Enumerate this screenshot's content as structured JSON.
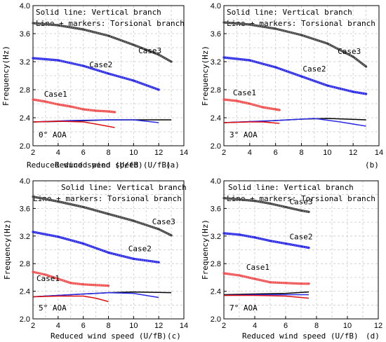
{
  "chart_data": [
    {
      "type": "line",
      "panel_label": "(a)",
      "aoa_label": "0° AOA",
      "xlabel": "Reduced wind speed (U/fB)",
      "ylabel": "Frequency(Hz)",
      "xlim": [
        2,
        14
      ],
      "ylim": [
        2.0,
        4.0
      ],
      "xticks": [
        "2",
        "4",
        "6",
        "8",
        "10",
        "12",
        "14"
      ],
      "yticks": [
        "2.0",
        "2.4",
        "2.8",
        "3.2",
        "3.6",
        "4.0"
      ],
      "legend": [
        "Solid line: Vertical branch",
        "Line + markers: Torsional branch"
      ],
      "grid": true,
      "series": [
        {
          "name": "Case3",
          "color": "#444444",
          "branch": "torsional",
          "points": [
            [
              2,
              3.75
            ],
            [
              4,
              3.72
            ],
            [
              6,
              3.66
            ],
            [
              8,
              3.57
            ],
            [
              10,
              3.44
            ],
            [
              12,
              3.3
            ],
            [
              13,
              3.2
            ]
          ]
        },
        {
          "name": "Case2",
          "color": "#2a2ae8",
          "branch": "torsional",
          "points": [
            [
              2,
              3.25
            ],
            [
              4,
              3.22
            ],
            [
              6,
              3.14
            ],
            [
              8,
              3.03
            ],
            [
              10,
              2.93
            ],
            [
              12,
              2.8
            ]
          ]
        },
        {
          "name": "Case1",
          "color": "#f05050",
          "branch": "torsional",
          "points": [
            [
              2,
              2.66
            ],
            [
              3,
              2.63
            ],
            [
              4,
              2.59
            ],
            [
              5,
              2.56
            ],
            [
              6,
              2.52
            ],
            [
              7,
              2.5
            ],
            [
              8,
              2.49
            ],
            [
              8.5,
              2.48
            ]
          ]
        },
        {
          "name": "",
          "color": "#000000",
          "branch": "vertical",
          "points": [
            [
              2,
              2.34
            ],
            [
              5,
              2.35
            ],
            [
              8,
              2.37
            ],
            [
              10,
              2.37
            ],
            [
              13,
              2.37
            ]
          ]
        },
        {
          "name": "",
          "color": "#2a2ae8",
          "branch": "vertical",
          "points": [
            [
              2,
              2.34
            ],
            [
              5,
              2.36
            ],
            [
              8,
              2.37
            ],
            [
              10,
              2.37
            ],
            [
              12,
              2.33
            ]
          ]
        },
        {
          "name": "",
          "color": "#e01010",
          "branch": "vertical",
          "points": [
            [
              2,
              2.34
            ],
            [
              4,
              2.35
            ],
            [
              6,
              2.34
            ],
            [
              7,
              2.31
            ],
            [
              8.5,
              2.26
            ]
          ]
        }
      ]
    },
    {
      "type": "line",
      "panel_label": "(b)",
      "aoa_label": "3° AOA",
      "xlabel": "Reduced wind speed (U/fB)",
      "ylabel": "Frequency(Hz)",
      "xlim": [
        2,
        14
      ],
      "ylim": [
        2.0,
        4.0
      ],
      "xticks": [
        "2",
        "4",
        "6",
        "8",
        "10",
        "12",
        "14"
      ],
      "yticks": [
        "2.0",
        "2.4",
        "2.8",
        "3.2",
        "3.6",
        "4.0"
      ],
      "legend": [
        "Solid line: Vertical branch",
        "Line + markers: Torsional branch"
      ],
      "grid": true,
      "series": [
        {
          "name": "Case3",
          "color": "#444444",
          "branch": "torsional",
          "points": [
            [
              2,
              3.76
            ],
            [
              4,
              3.73
            ],
            [
              6,
              3.67
            ],
            [
              8,
              3.58
            ],
            [
              10,
              3.46
            ],
            [
              12,
              3.27
            ],
            [
              13,
              3.13
            ]
          ]
        },
        {
          "name": "Case2",
          "color": "#2a2ae8",
          "branch": "torsional",
          "points": [
            [
              2,
              3.26
            ],
            [
              4,
              3.22
            ],
            [
              6,
              3.12
            ],
            [
              8,
              2.99
            ],
            [
              10,
              2.86
            ],
            [
              12,
              2.77
            ],
            [
              13,
              2.74
            ]
          ]
        },
        {
          "name": "Case1",
          "color": "#f05050",
          "branch": "torsional",
          "points": [
            [
              2,
              2.66
            ],
            [
              3,
              2.64
            ],
            [
              4,
              2.6
            ],
            [
              5,
              2.55
            ],
            [
              6,
              2.52
            ],
            [
              6.3,
              2.51
            ]
          ]
        },
        {
          "name": "",
          "color": "#000000",
          "branch": "vertical",
          "points": [
            [
              2,
              2.33
            ],
            [
              5,
              2.35
            ],
            [
              8,
              2.38
            ],
            [
              10,
              2.39
            ],
            [
              13,
              2.37
            ]
          ]
        },
        {
          "name": "",
          "color": "#2a2ae8",
          "branch": "vertical",
          "points": [
            [
              2,
              2.33
            ],
            [
              6,
              2.36
            ],
            [
              9,
              2.39
            ],
            [
              11,
              2.34
            ],
            [
              13,
              2.28
            ]
          ]
        },
        {
          "name": "",
          "color": "#e01010",
          "branch": "vertical",
          "points": [
            [
              2,
              2.33
            ],
            [
              4,
              2.34
            ],
            [
              5,
              2.34
            ],
            [
              6.3,
              2.32
            ]
          ]
        }
      ]
    },
    {
      "type": "line",
      "panel_label": "(c)",
      "aoa_label": "5° AOA",
      "xlabel": "Reduced wind speed (U/fB)",
      "ylabel": "Frequency(Hz)",
      "xlim": [
        2,
        14
      ],
      "ylim": [
        2.0,
        4.0
      ],
      "xticks": [
        "2",
        "4",
        "6",
        "8",
        "10",
        "12",
        "14"
      ],
      "yticks": [
        "2.0",
        "2.4",
        "2.8",
        "3.2",
        "3.6",
        "4.0"
      ],
      "legend": [
        "Solid line: Vertical branch",
        "Line + markers: Torsional branch"
      ],
      "grid": true,
      "series": [
        {
          "name": "Case3",
          "color": "#444444",
          "branch": "torsional",
          "points": [
            [
              2,
              3.77
            ],
            [
              4,
              3.7
            ],
            [
              6,
              3.62
            ],
            [
              8,
              3.52
            ],
            [
              10,
              3.42
            ],
            [
              12,
              3.3
            ],
            [
              13,
              3.21
            ]
          ]
        },
        {
          "name": "Case2",
          "color": "#2a2ae8",
          "branch": "torsional",
          "points": [
            [
              2,
              3.26
            ],
            [
              4,
              3.19
            ],
            [
              6,
              3.09
            ],
            [
              8,
              2.96
            ],
            [
              10,
              2.87
            ],
            [
              12,
              2.82
            ]
          ]
        },
        {
          "name": "Case1",
          "color": "#f05050",
          "branch": "torsional",
          "points": [
            [
              2,
              2.68
            ],
            [
              3,
              2.64
            ],
            [
              4,
              2.58
            ],
            [
              5,
              2.52
            ],
            [
              6,
              2.5
            ],
            [
              8,
              2.48
            ]
          ]
        },
        {
          "name": "",
          "color": "#000000",
          "branch": "vertical",
          "points": [
            [
              2,
              2.32
            ],
            [
              5,
              2.35
            ],
            [
              8,
              2.38
            ],
            [
              10,
              2.39
            ],
            [
              13,
              2.38
            ]
          ]
        },
        {
          "name": "",
          "color": "#2a2ae8",
          "branch": "vertical",
          "points": [
            [
              2,
              2.32
            ],
            [
              5,
              2.35
            ],
            [
              8,
              2.38
            ],
            [
              10,
              2.37
            ],
            [
              12,
              2.31
            ]
          ]
        },
        {
          "name": "",
          "color": "#e01010",
          "branch": "vertical",
          "points": [
            [
              2,
              2.32
            ],
            [
              4,
              2.33
            ],
            [
              6,
              2.33
            ],
            [
              7,
              2.3
            ],
            [
              8,
              2.25
            ]
          ]
        }
      ]
    },
    {
      "type": "line",
      "panel_label": "(d)",
      "aoa_label": "7° AOA",
      "xlabel": "Reduced wind speed (U/fB)",
      "ylabel": "Frequency(Hz)",
      "xlim": [
        2,
        12
      ],
      "ylim": [
        2.0,
        4.0
      ],
      "xticks": [
        "2",
        "4",
        "6",
        "8",
        "10",
        "12"
      ],
      "yticks": [
        "2.0",
        "2.4",
        "2.8",
        "3.2",
        "3.6",
        "4.0"
      ],
      "legend": [
        "Solid line: Vertical branch",
        "Line + markers: Torsional branch"
      ],
      "grid": true,
      "series": [
        {
          "name": "Case3",
          "color": "#444444",
          "branch": "torsional",
          "points": [
            [
              2,
              3.75
            ],
            [
              3,
              3.73
            ],
            [
              4,
              3.71
            ],
            [
              5,
              3.67
            ],
            [
              6,
              3.62
            ],
            [
              7,
              3.57
            ],
            [
              7.5,
              3.55
            ]
          ]
        },
        {
          "name": "Case2",
          "color": "#2a2ae8",
          "branch": "torsional",
          "points": [
            [
              2,
              3.24
            ],
            [
              3,
              3.22
            ],
            [
              4,
              3.18
            ],
            [
              5,
              3.13
            ],
            [
              6,
              3.09
            ],
            [
              7,
              3.05
            ],
            [
              7.5,
              3.03
            ]
          ]
        },
        {
          "name": "Case1",
          "color": "#f05050",
          "branch": "torsional",
          "points": [
            [
              2,
              2.66
            ],
            [
              3,
              2.63
            ],
            [
              4,
              2.58
            ],
            [
              5,
              2.53
            ],
            [
              6,
              2.52
            ],
            [
              7,
              2.51
            ],
            [
              7.5,
              2.51
            ]
          ]
        },
        {
          "name": "",
          "color": "#000000",
          "branch": "vertical",
          "points": [
            [
              2,
              2.35
            ],
            [
              4,
              2.36
            ],
            [
              6,
              2.37
            ],
            [
              7.5,
              2.39
            ]
          ]
        },
        {
          "name": "",
          "color": "#2a2ae8",
          "branch": "vertical",
          "points": [
            [
              2,
              2.34
            ],
            [
              4,
              2.35
            ],
            [
              6,
              2.35
            ],
            [
              7.5,
              2.35
            ]
          ]
        },
        {
          "name": "",
          "color": "#e01010",
          "branch": "vertical",
          "points": [
            [
              2,
              2.34
            ],
            [
              4,
              2.34
            ],
            [
              6,
              2.33
            ],
            [
              7.5,
              2.3
            ]
          ]
        }
      ]
    }
  ]
}
